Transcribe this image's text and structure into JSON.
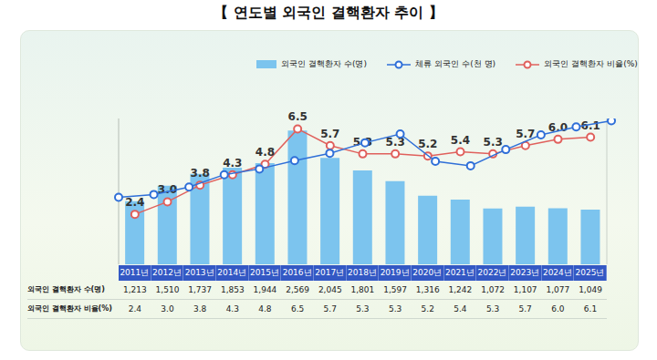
{
  "chart_data": [
    {
      "type": "bar",
      "title": "【 연도별 외국인 결핵환자 추이 】",
      "categories": [
        "2011년",
        "2012년",
        "2013년",
        "2014년",
        "2015년",
        "2016년",
        "2017년",
        "2018년",
        "2019년",
        "2020년",
        "2021년",
        "2022년",
        "2023년",
        "2024년",
        "2025년"
      ],
      "series": [
        {
          "name": "외국인 결핵환자 수(명)",
          "type": "bar",
          "color": "#7cc4ee",
          "values": [
            1213,
            1510,
            1737,
            1853,
            1944,
            2569,
            2045,
            1801,
            1597,
            1316,
            1242,
            1072,
            1107,
            1077,
            1049
          ],
          "value_labels": [
            "1,213",
            "1,510",
            "1,737",
            "1,853",
            "1,944",
            "2,569",
            "2,045",
            "1,801",
            "1,597",
            "1,316",
            "1,242",
            "1,072",
            "1,107",
            "1,077",
            "1,049"
          ]
        },
        {
          "name": "외국인 결핵환자 비율(%)",
          "type": "line",
          "axis": "y2",
          "color": "#e0605c",
          "marker": "circle",
          "data_labels": true,
          "values": [
            2.4,
            3.0,
            3.8,
            4.3,
            4.8,
            6.5,
            5.7,
            5.3,
            5.3,
            5.2,
            5.4,
            5.3,
            5.7,
            6.0,
            6.1
          ],
          "value_labels": [
            "2.4",
            "3.0",
            "3.8",
            "4.3",
            "4.8",
            "6.5",
            "5.7",
            "5.3",
            "5.3",
            "5.2",
            "5.4",
            "5.3",
            "5.7",
            "6.0",
            "6.1"
          ]
        }
      ],
      "ylim": [
        0,
        2800
      ],
      "y2lim": [
        0,
        7
      ],
      "grid": false,
      "tick_labels": false
    },
    {
      "type": "line",
      "categories": [
        "2011년",
        "2012년",
        "2013년",
        "2014년",
        "2015년",
        "2016년",
        "2017년",
        "2018년",
        "2019년",
        "2020년",
        "2021년",
        "2022년",
        "2023년",
        "2024년",
        "2025년"
      ],
      "series": [
        {
          "name": "체류 외국인 수(천 명)",
          "type": "line",
          "color": "#2f6fd8",
          "marker": "circle",
          "values": [
            1395,
            1445,
            1576,
            1798,
            1900,
            2049,
            2180,
            2367,
            2524,
            2036,
            1957,
            2246,
            2508,
            2650,
            2760
          ]
        }
      ],
      "ylim": [
        200,
        2800
      ],
      "grid": false,
      "tick_labels": false
    }
  ]
}
